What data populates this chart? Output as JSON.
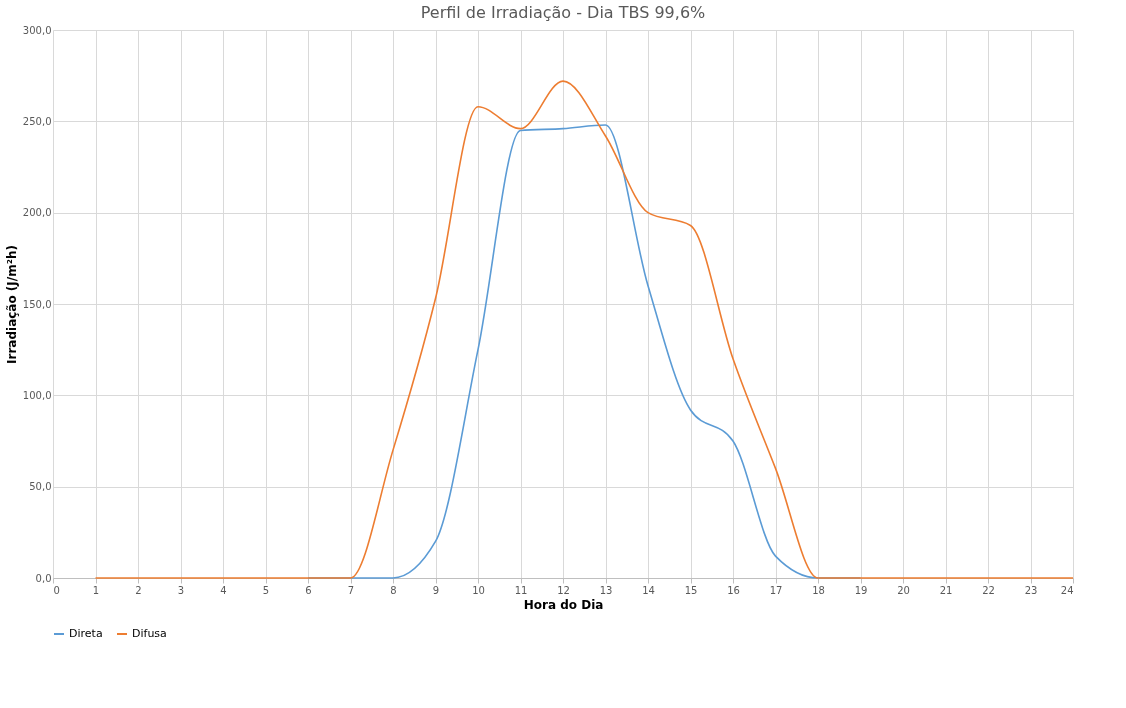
{
  "chart_data": {
    "type": "line",
    "title": "Perfil de Irradiação - Dia TBS 99,6%",
    "xlabel": "Hora do Dia",
    "ylabel": "Irradiação (J/m²h)",
    "x": [
      1,
      2,
      3,
      4,
      5,
      6,
      7,
      8,
      9,
      10,
      11,
      12,
      13,
      14,
      15,
      16,
      17,
      18,
      19,
      20,
      21,
      22,
      23,
      24
    ],
    "series": [
      {
        "name": "Direta",
        "color": "#5b9bd5",
        "values": [
          null,
          null,
          null,
          null,
          null,
          0,
          0,
          0,
          20,
          125,
          245,
          246,
          248,
          160,
          92,
          75,
          12,
          0,
          0,
          null,
          null,
          null,
          null,
          null
        ]
      },
      {
        "name": "Difusa",
        "color": "#ed7d31",
        "values": [
          0,
          0,
          0,
          0,
          0,
          0,
          0,
          70,
          153,
          258,
          246,
          272,
          242,
          200,
          193,
          120,
          60,
          0,
          0,
          0,
          0,
          0,
          0,
          0
        ]
      }
    ],
    "xlim": [
      0,
      24
    ],
    "xticks": [
      0,
      1,
      2,
      3,
      4,
      5,
      6,
      7,
      8,
      9,
      10,
      11,
      12,
      13,
      14,
      15,
      16,
      17,
      18,
      19,
      20,
      21,
      22,
      23,
      24
    ],
    "ylim": [
      0,
      300
    ],
    "yticks": [
      {
        "value": 0,
        "label": "0,0"
      },
      {
        "value": 50,
        "label": "50,0"
      },
      {
        "value": 100,
        "label": "100,0"
      },
      {
        "value": 150,
        "label": "150,0"
      },
      {
        "value": 200,
        "label": "200,0"
      },
      {
        "value": 250,
        "label": "250,0"
      },
      {
        "value": 300,
        "label": "300,0"
      }
    ],
    "grid": true,
    "legend": "bottom",
    "marker": "none",
    "line_style": "solid"
  }
}
